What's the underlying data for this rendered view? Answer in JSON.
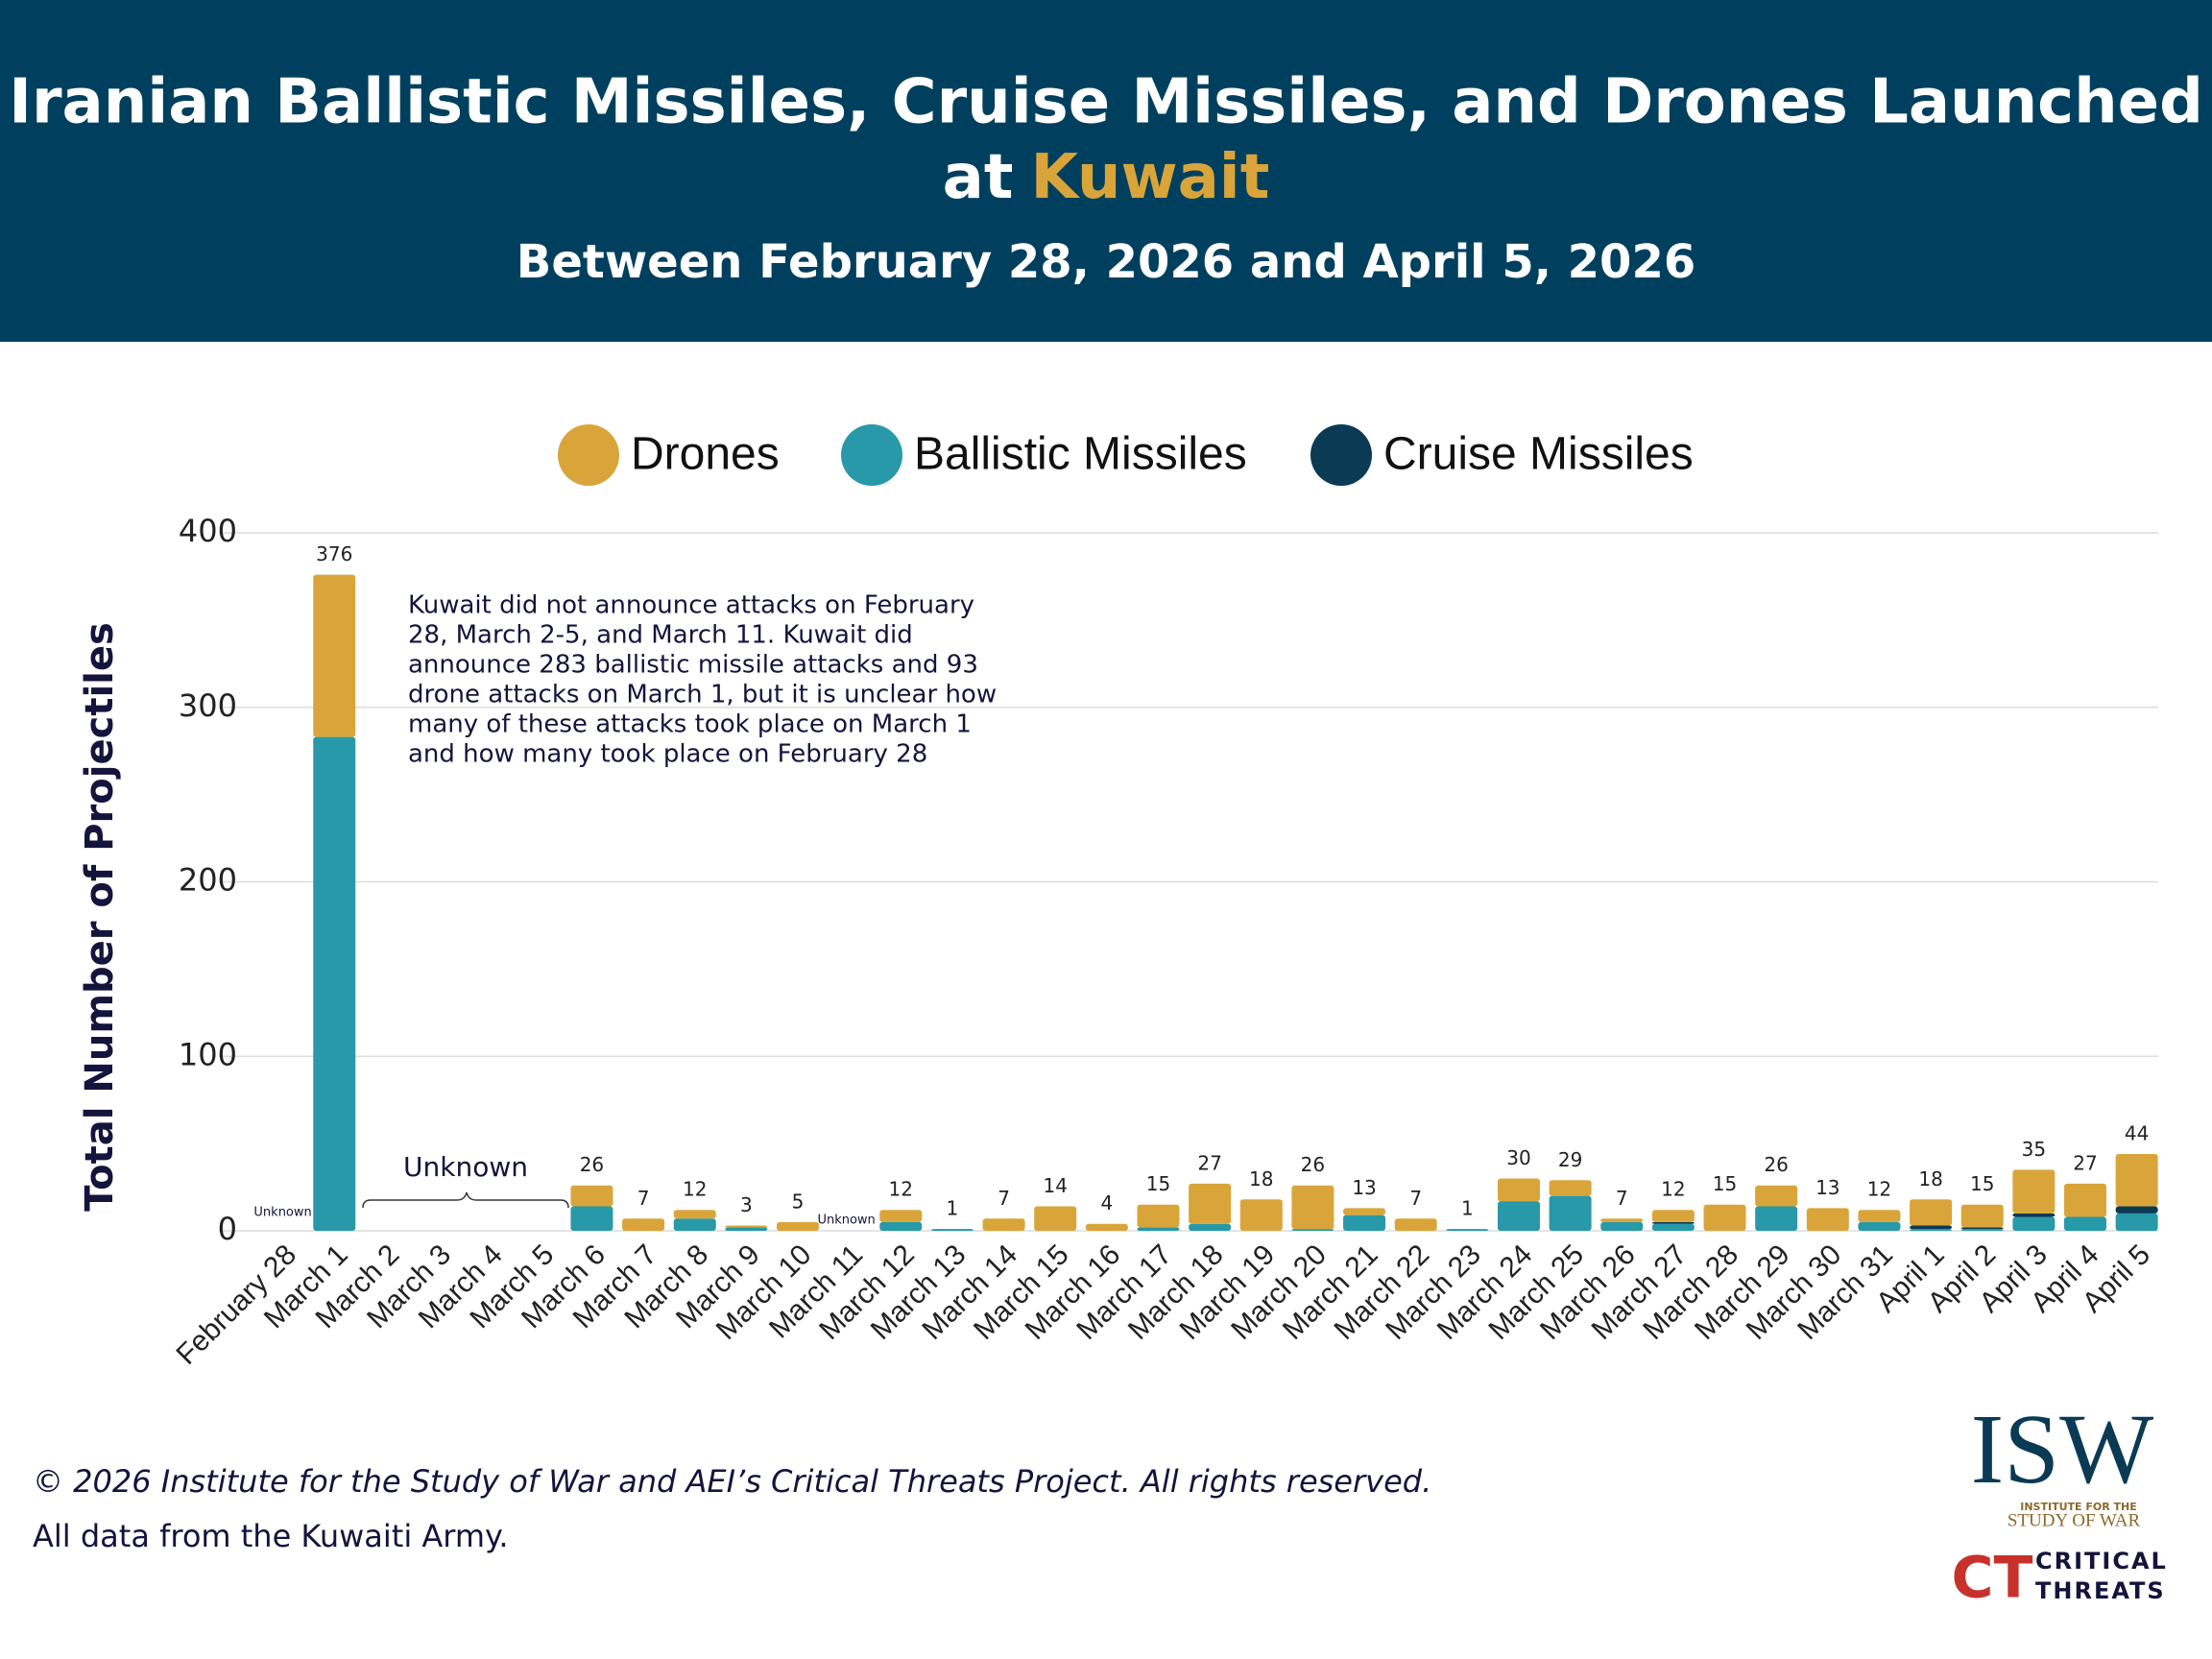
{
  "chart_data": {
    "type": "stacked_bar",
    "title_line1": "Iranian Ballistic Missiles, Cruise Missiles, and Drones Launched",
    "title_line2_prefix": "at",
    "title_highlight": "Kuwait",
    "subtitle": "Between February 28, 2026 and April 5, 2026",
    "y_label": "Total Number of Projectiles",
    "categories": [
      "February 28",
      "March 1",
      "March 2",
      "March 3",
      "March 4",
      "March 5",
      "March 6",
      "March 7",
      "March 8",
      "March 9",
      "March 10",
      "March 11",
      "March 12",
      "March 13",
      "March 14",
      "March 15",
      "March 16",
      "March 17",
      "March 18",
      "March 19",
      "March 20",
      "March 21",
      "March 22",
      "March 23",
      "March 24",
      "March 25",
      "March 26",
      "March 27",
      "March 28",
      "March 29",
      "March 30",
      "March 31",
      "April 1",
      "April 2",
      "April 3",
      "April 4",
      "April 5"
    ],
    "series": [
      {
        "name": "Drones",
        "color": "#d9a53a",
        "values": [
          null,
          93,
          null,
          null,
          null,
          null,
          12,
          7,
          5,
          1,
          5,
          null,
          7,
          0,
          7,
          14,
          4,
          13,
          23,
          18,
          25,
          4,
          7,
          0,
          13,
          9,
          2,
          7,
          15,
          12,
          13,
          7,
          15,
          13,
          25,
          19,
          30
        ]
      },
      {
        "name": "Ballistic Missiles",
        "color": "#2899a8",
        "values": [
          null,
          283,
          null,
          null,
          null,
          null,
          14,
          0,
          7,
          2,
          0,
          null,
          5,
          1,
          0,
          0,
          0,
          2,
          4,
          0,
          1,
          9,
          0,
          1,
          17,
          20,
          5,
          4,
          0,
          14,
          0,
          5,
          1,
          1,
          8,
          8,
          10
        ]
      },
      {
        "name": "Cruise Missiles",
        "color": "#0b3a55",
        "values": [
          null,
          0,
          null,
          null,
          null,
          null,
          0,
          0,
          0,
          0,
          0,
          null,
          0,
          0,
          0,
          0,
          0,
          0,
          0,
          0,
          0,
          0,
          0,
          0,
          0,
          0,
          0,
          1,
          0,
          0,
          0,
          0,
          2,
          1,
          2,
          0,
          4
        ]
      }
    ],
    "totals": [
      null,
      376,
      null,
      null,
      null,
      null,
      26,
      7,
      12,
      3,
      5,
      null,
      12,
      1,
      7,
      14,
      4,
      15,
      27,
      18,
      26,
      13,
      7,
      1,
      30,
      29,
      7,
      12,
      15,
      26,
      13,
      12,
      18,
      15,
      35,
      27,
      44
    ],
    "ylim": [
      0,
      400
    ],
    "yticks": [
      0,
      100,
      200,
      300,
      400
    ],
    "grid": true,
    "annotations": {
      "note": [
        "Kuwait did not announce attacks on February",
        "28, March 2-5, and March 11. Kuwait did",
        "announce 283 ballistic missile attacks and 93",
        "drone attacks on March 1, but it is unclear how",
        "many of these attacks took place on March 1",
        "and how many took place on February 28"
      ],
      "unknown_range": "Unknown",
      "unknown_feb28": "Unknown",
      "unknown_mar11": "Unknown"
    }
  },
  "footer": {
    "copyright": "© 2026 Institute for the Study of War and AEI’s Critical Threats Project. All rights reserved.",
    "source": "All data from the Kuwaiti Army."
  },
  "logos": {
    "isw": "ISW",
    "isw_sub1": "INSTITUTE FOR THE",
    "isw_sub2": "STUDY OF WAR",
    "ct": "CT",
    "ct_line1": "CRITICAL",
    "ct_line2": "THREATS"
  }
}
